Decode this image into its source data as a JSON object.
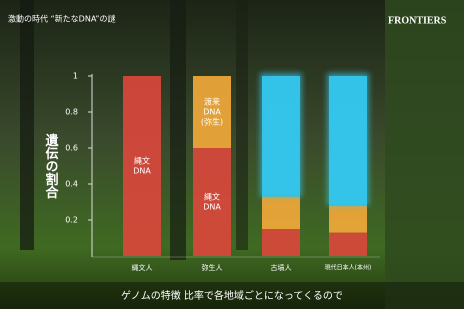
{
  "chart_data": {
    "type": "stacked_bar",
    "program_title": "激動の時代 “新たなDNA”の謎",
    "logo": "FRONTIERS",
    "y_label": "遺伝の割合",
    "caption": "ゲノムの特徴 比率で各地域ごとになってくるので",
    "categories": [
      "縄文人",
      "弥生人",
      "古墳人",
      "現代日本人(本州)"
    ],
    "series": [
      {
        "color": "#d9483c",
        "values": [
          1,
          0.6,
          0.15,
          0.13
        ]
      },
      {
        "color": "#f0a83a",
        "values": [
          0,
          0.4,
          0.18,
          0.15
        ]
      },
      {
        "color": "#34c8ef",
        "values": [
          0,
          0,
          0.67,
          0.72
        ]
      }
    ],
    "annotations": [
      [
        "縄文",
        "DNA"
      ],
      [
        "渡来",
        "DNA",
        "(弥生)"
      ],
      [
        "縄文",
        "DNA"
      ]
    ],
    "ylim": [
      0,
      1
    ],
    "yticks": [
      0.2,
      0.4,
      0.6,
      0.8,
      1
    ]
  }
}
